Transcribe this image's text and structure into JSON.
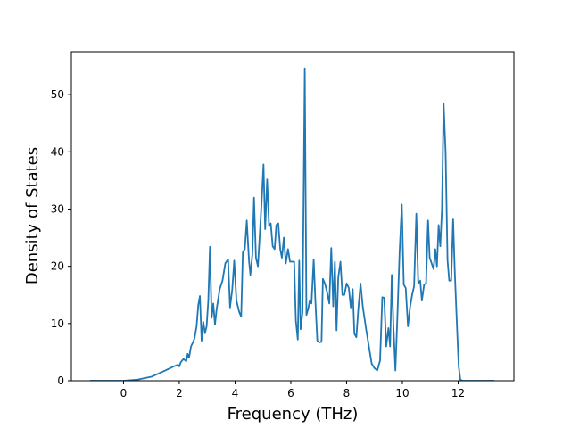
{
  "chart_data": {
    "type": "line",
    "title": "",
    "xlabel": "Frequency (THz)",
    "ylabel": "Density of States",
    "xlim": [
      -1.87,
      14.0
    ],
    "ylim": [
      0,
      57.5
    ],
    "xticks": [
      0,
      2,
      4,
      6,
      8,
      10,
      12
    ],
    "yticks": [
      0,
      10,
      20,
      30,
      40,
      50
    ],
    "grid": false,
    "legend": "none",
    "series": [
      {
        "color": "#1f77b4",
        "points": [
          [
            -1.2,
            0.0
          ],
          [
            -0.6,
            0.0
          ],
          [
            0.0,
            0.0
          ],
          [
            0.5,
            0.2
          ],
          [
            1.0,
            0.7
          ],
          [
            1.5,
            1.8
          ],
          [
            1.8,
            2.5
          ],
          [
            1.95,
            2.8
          ],
          [
            2.0,
            2.5
          ],
          [
            2.05,
            3.2
          ],
          [
            2.15,
            3.8
          ],
          [
            2.25,
            3.4
          ],
          [
            2.3,
            4.7
          ],
          [
            2.35,
            4.0
          ],
          [
            2.42,
            6.0
          ],
          [
            2.5,
            6.8
          ],
          [
            2.55,
            7.5
          ],
          [
            2.62,
            9.5
          ],
          [
            2.68,
            13.2
          ],
          [
            2.74,
            14.8
          ],
          [
            2.8,
            7.0
          ],
          [
            2.86,
            10.3
          ],
          [
            2.92,
            8.3
          ],
          [
            2.98,
            9.5
          ],
          [
            3.04,
            14.0
          ],
          [
            3.1,
            23.4
          ],
          [
            3.16,
            11.0
          ],
          [
            3.22,
            13.5
          ],
          [
            3.28,
            9.8
          ],
          [
            3.34,
            12.5
          ],
          [
            3.45,
            16.0
          ],
          [
            3.55,
            17.5
          ],
          [
            3.65,
            20.5
          ],
          [
            3.75,
            21.2
          ],
          [
            3.82,
            12.8
          ],
          [
            3.9,
            16.0
          ],
          [
            3.97,
            21.0
          ],
          [
            4.05,
            14.0
          ],
          [
            4.15,
            12.0
          ],
          [
            4.22,
            11.2
          ],
          [
            4.28,
            22.5
          ],
          [
            4.35,
            23.0
          ],
          [
            4.42,
            28.0
          ],
          [
            4.5,
            21.0
          ],
          [
            4.55,
            18.5
          ],
          [
            4.62,
            22.0
          ],
          [
            4.68,
            32.0
          ],
          [
            4.75,
            21.5
          ],
          [
            4.82,
            20.0
          ],
          [
            4.88,
            25.0
          ],
          [
            4.95,
            31.0
          ],
          [
            5.02,
            37.8
          ],
          [
            5.08,
            26.5
          ],
          [
            5.15,
            35.2
          ],
          [
            5.22,
            27.0
          ],
          [
            5.28,
            27.5
          ],
          [
            5.35,
            23.5
          ],
          [
            5.42,
            23.0
          ],
          [
            5.48,
            27.2
          ],
          [
            5.55,
            27.5
          ],
          [
            5.62,
            23.0
          ],
          [
            5.68,
            21.5
          ],
          [
            5.75,
            25.0
          ],
          [
            5.82,
            20.5
          ],
          [
            5.9,
            23.0
          ],
          [
            5.97,
            20.8
          ],
          [
            6.05,
            20.8
          ],
          [
            6.12,
            20.8
          ],
          [
            6.18,
            10.5
          ],
          [
            6.25,
            7.2
          ],
          [
            6.3,
            21.0
          ],
          [
            6.35,
            9.0
          ],
          [
            6.42,
            12.0
          ],
          [
            6.5,
            54.6
          ],
          [
            6.56,
            11.5
          ],
          [
            6.62,
            12.5
          ],
          [
            6.68,
            14.0
          ],
          [
            6.74,
            13.5
          ],
          [
            6.82,
            21.2
          ],
          [
            6.88,
            14.0
          ],
          [
            6.95,
            7.0
          ],
          [
            7.02,
            6.7
          ],
          [
            7.1,
            6.8
          ],
          [
            7.15,
            17.8
          ],
          [
            7.22,
            17.0
          ],
          [
            7.3,
            15.5
          ],
          [
            7.38,
            13.5
          ],
          [
            7.45,
            23.2
          ],
          [
            7.52,
            13.0
          ],
          [
            7.58,
            20.8
          ],
          [
            7.64,
            8.8
          ],
          [
            7.7,
            18.0
          ],
          [
            7.78,
            20.8
          ],
          [
            7.85,
            15.0
          ],
          [
            7.92,
            15.0
          ],
          [
            8.0,
            17.0
          ],
          [
            8.08,
            16.2
          ],
          [
            8.15,
            12.8
          ],
          [
            8.22,
            16.0
          ],
          [
            8.28,
            8.2
          ],
          [
            8.35,
            7.6
          ],
          [
            8.42,
            12.5
          ],
          [
            8.5,
            17.0
          ],
          [
            8.58,
            13.0
          ],
          [
            8.7,
            9.0
          ],
          [
            8.8,
            6.0
          ],
          [
            8.9,
            3.0
          ],
          [
            9.0,
            2.2
          ],
          [
            9.1,
            1.8
          ],
          [
            9.2,
            3.5
          ],
          [
            9.28,
            14.6
          ],
          [
            9.35,
            14.5
          ],
          [
            9.42,
            6.0
          ],
          [
            9.5,
            9.2
          ],
          [
            9.56,
            6.0
          ],
          [
            9.62,
            18.5
          ],
          [
            9.68,
            9.5
          ],
          [
            9.75,
            1.8
          ],
          [
            9.82,
            11.0
          ],
          [
            9.9,
            22.5
          ],
          [
            9.98,
            30.8
          ],
          [
            10.05,
            16.8
          ],
          [
            10.12,
            16.2
          ],
          [
            10.2,
            9.5
          ],
          [
            10.28,
            13.0
          ],
          [
            10.35,
            15.0
          ],
          [
            10.42,
            16.5
          ],
          [
            10.5,
            29.2
          ],
          [
            10.57,
            17.0
          ],
          [
            10.64,
            17.5
          ],
          [
            10.7,
            14.0
          ],
          [
            10.78,
            16.8
          ],
          [
            10.85,
            17.0
          ],
          [
            10.92,
            28.0
          ],
          [
            10.98,
            21.5
          ],
          [
            11.05,
            20.5
          ],
          [
            11.12,
            19.5
          ],
          [
            11.18,
            23.0
          ],
          [
            11.24,
            20.0
          ],
          [
            11.3,
            27.2
          ],
          [
            11.36,
            23.5
          ],
          [
            11.42,
            30.0
          ],
          [
            11.48,
            48.5
          ],
          [
            11.55,
            40.0
          ],
          [
            11.62,
            21.0
          ],
          [
            11.68,
            17.5
          ],
          [
            11.75,
            17.5
          ],
          [
            11.82,
            28.2
          ],
          [
            11.88,
            19.0
          ],
          [
            11.95,
            10.5
          ],
          [
            12.02,
            2.5
          ],
          [
            12.08,
            0.2
          ],
          [
            12.15,
            0.0
          ],
          [
            12.7,
            0.0
          ],
          [
            13.3,
            0.0
          ]
        ]
      }
    ]
  }
}
